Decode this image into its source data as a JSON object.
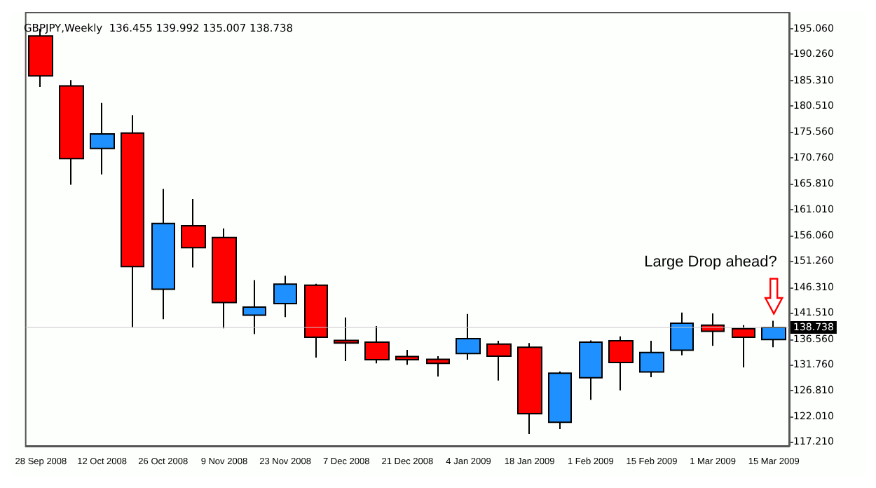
{
  "chart_data": {
    "type": "candlestick",
    "title": "GBPJPY,Weekly  136.455 139.992 135.007 138.738",
    "categories": [
      "28 Sep 2008",
      null,
      "12 Oct 2008",
      null,
      "26 Oct 2008",
      null,
      "9 Nov 2008",
      null,
      "23 Nov 2008",
      null,
      "7 Dec 2008",
      null,
      "21 Dec 2008",
      null,
      "4 Jan 2009",
      null,
      "18 Jan 2009",
      null,
      "1 Feb 2009",
      null,
      "15 Feb 2009",
      null,
      "1 Mar 2009",
      null,
      "15 Mar 2009"
    ],
    "ohlc": [
      [
        193.71,
        195.06,
        184.1,
        186.16
      ],
      [
        184.3,
        185.39,
        165.63,
        170.56
      ],
      [
        172.49,
        181.07,
        167.59,
        175.22
      ],
      [
        175.39,
        178.78,
        138.76,
        150.21
      ],
      [
        145.96,
        164.86,
        140.29,
        158.35
      ],
      [
        157.92,
        162.93,
        150.03,
        153.77
      ],
      [
        155.7,
        157.41,
        138.58,
        143.42
      ],
      [
        141.05,
        147.67,
        137.49,
        142.58
      ],
      [
        143.24,
        148.5,
        140.7,
        146.9
      ],
      [
        146.72,
        146.98,
        133.06,
        136.88
      ],
      [
        136.29,
        140.62,
        132.4,
        135.79
      ],
      [
        135.96,
        139.01,
        131.97,
        132.65
      ],
      [
        133.24,
        134.51,
        131.71,
        132.65
      ],
      [
        132.73,
        133.32,
        129.5,
        131.97
      ],
      [
        133.83,
        141.3,
        132.65,
        136.62
      ],
      [
        135.61,
        136.22,
        128.74,
        133.32
      ],
      [
        135.02,
        135.79,
        118.66,
        122.48
      ],
      [
        120.85,
        130.44,
        119.58,
        130.11
      ],
      [
        129.25,
        136.29,
        125.1,
        135.96
      ],
      [
        136.22,
        137.06,
        126.88,
        132.14
      ],
      [
        130.36,
        136.22,
        129.35,
        134.0
      ],
      [
        134.43,
        141.56,
        133.5,
        139.52
      ],
      [
        139.17,
        141.38,
        135.28,
        138.0
      ],
      [
        138.51,
        139.17,
        131.21,
        136.88
      ],
      [
        136.455,
        139.992,
        135.007,
        138.738
      ]
    ],
    "colors": [
      "#ff0000",
      "#ff0000",
      "#1e90ff",
      "#ff0000",
      "#1e90ff",
      "#ff0000",
      "#ff0000",
      "#1e90ff",
      "#1e90ff",
      "#ff0000",
      "#ff0000",
      "#ff0000",
      "#ff0000",
      "#ff0000",
      "#1e90ff",
      "#ff0000",
      "#ff0000",
      "#1e90ff",
      "#1e90ff",
      "#ff0000",
      "#1e90ff",
      "#1e90ff",
      "#ff0000",
      "#ff0000",
      "#1e90ff"
    ],
    "ylim": [
      116.4,
      198.1
    ],
    "yticks": [
      {
        "value": 195.06,
        "label": "195.060"
      },
      {
        "value": 190.26,
        "label": "190.260"
      },
      {
        "value": 185.31,
        "label": "185.310"
      },
      {
        "value": 180.51,
        "label": "180.510"
      },
      {
        "value": 175.56,
        "label": "175.560"
      },
      {
        "value": 170.76,
        "label": "170.760"
      },
      {
        "value": 165.81,
        "label": "165.810"
      },
      {
        "value": 161.01,
        "label": "161.010"
      },
      {
        "value": 156.06,
        "label": "156.060"
      },
      {
        "value": 151.26,
        "label": "151.260"
      },
      {
        "value": 146.31,
        "label": "146.310"
      },
      {
        "value": 141.51,
        "label": "141.510"
      },
      {
        "value": 136.56,
        "label": "136.560"
      },
      {
        "value": 131.76,
        "label": "131.760"
      },
      {
        "value": 126.81,
        "label": "126.810"
      },
      {
        "value": 122.01,
        "label": "122.010"
      },
      {
        "value": 117.21,
        "label": "117.210"
      }
    ],
    "ref_lines": [
      {
        "axis": "y",
        "value": 138.738,
        "label": "138.738"
      }
    ],
    "annotations": [
      "Large Drop ahead?"
    ],
    "grid": false
  }
}
